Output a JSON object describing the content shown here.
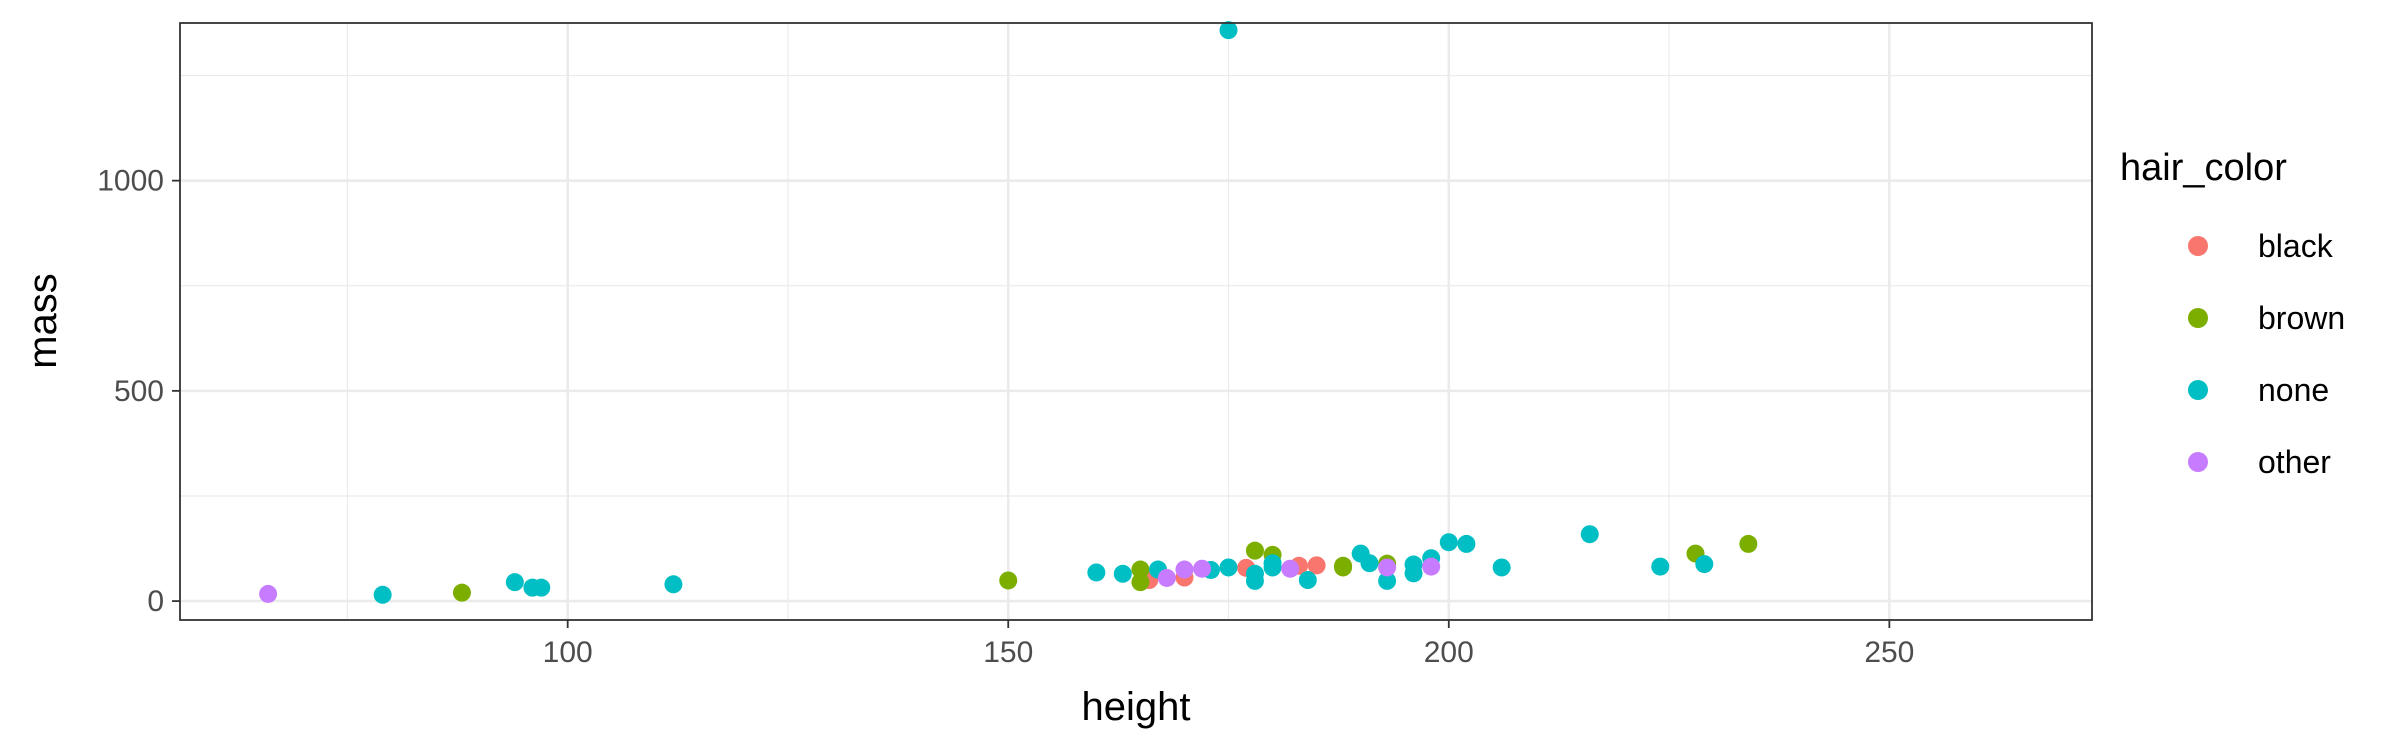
{
  "chart_data": {
    "type": "scatter",
    "xlabel": "height",
    "ylabel": "mass",
    "xlim": [
      56,
      273
    ],
    "ylim": [
      -45,
      1375
    ],
    "x_ticks": [
      100,
      150,
      200,
      250
    ],
    "y_ticks": [
      0,
      500,
      1000
    ],
    "x_minor_ticks": [
      75,
      125,
      175,
      225
    ],
    "y_minor_ticks": [
      250,
      750,
      1250
    ],
    "grid": true,
    "legend": {
      "title": "hair_color",
      "placement": "right",
      "entries": [
        "black",
        "brown",
        "none",
        "other"
      ]
    },
    "colors": {
      "black": "#F8766D",
      "brown": "#7CAE00",
      "none": "#00BFC4",
      "other": "#C77CFF",
      "grid": "#EBEBEB",
      "panel_border": "#333333"
    },
    "series": [
      {
        "name": "black",
        "points": [
          {
            "x": 166,
            "y": 50
          },
          {
            "x": 170,
            "y": 56
          },
          {
            "x": 177,
            "y": 79
          },
          {
            "x": 183,
            "y": 84
          },
          {
            "x": 185,
            "y": 85
          }
        ]
      },
      {
        "name": "brown",
        "points": [
          {
            "x": 88,
            "y": 20
          },
          {
            "x": 150,
            "y": 49
          },
          {
            "x": 165,
            "y": 45
          },
          {
            "x": 165,
            "y": 75
          },
          {
            "x": 178,
            "y": 120
          },
          {
            "x": 180,
            "y": 110
          },
          {
            "x": 188,
            "y": 84
          },
          {
            "x": 188,
            "y": 80
          },
          {
            "x": 193,
            "y": 89
          },
          {
            "x": 228,
            "y": 113
          },
          {
            "x": 234,
            "y": 136
          }
        ]
      },
      {
        "name": "none",
        "points": [
          {
            "x": 79,
            "y": 15
          },
          {
            "x": 94,
            "y": 45
          },
          {
            "x": 96,
            "y": 32
          },
          {
            "x": 97,
            "y": 32
          },
          {
            "x": 112,
            "y": 40
          },
          {
            "x": 160,
            "y": 68
          },
          {
            "x": 163,
            "y": 65
          },
          {
            "x": 167,
            "y": 75
          },
          {
            "x": 173,
            "y": 74
          },
          {
            "x": 175,
            "y": 80
          },
          {
            "x": 175,
            "y": 1358
          },
          {
            "x": 178,
            "y": 48
          },
          {
            "x": 178,
            "y": 65
          },
          {
            "x": 180,
            "y": 80
          },
          {
            "x": 180,
            "y": 90
          },
          {
            "x": 184,
            "y": 50
          },
          {
            "x": 190,
            "y": 113
          },
          {
            "x": 191,
            "y": 90
          },
          {
            "x": 193,
            "y": 48
          },
          {
            "x": 196,
            "y": 66
          },
          {
            "x": 196,
            "y": 87
          },
          {
            "x": 198,
            "y": 102
          },
          {
            "x": 200,
            "y": 140
          },
          {
            "x": 202,
            "y": 136
          },
          {
            "x": 206,
            "y": 80
          },
          {
            "x": 216,
            "y": 159
          },
          {
            "x": 224,
            "y": 82
          },
          {
            "x": 229,
            "y": 88
          }
        ]
      },
      {
        "name": "other",
        "points": [
          {
            "x": 66,
            "y": 17
          },
          {
            "x": 168,
            "y": 55
          },
          {
            "x": 170,
            "y": 75
          },
          {
            "x": 172,
            "y": 77
          },
          {
            "x": 182,
            "y": 77
          },
          {
            "x": 193,
            "y": 80
          },
          {
            "x": 198,
            "y": 82
          }
        ]
      }
    ]
  }
}
